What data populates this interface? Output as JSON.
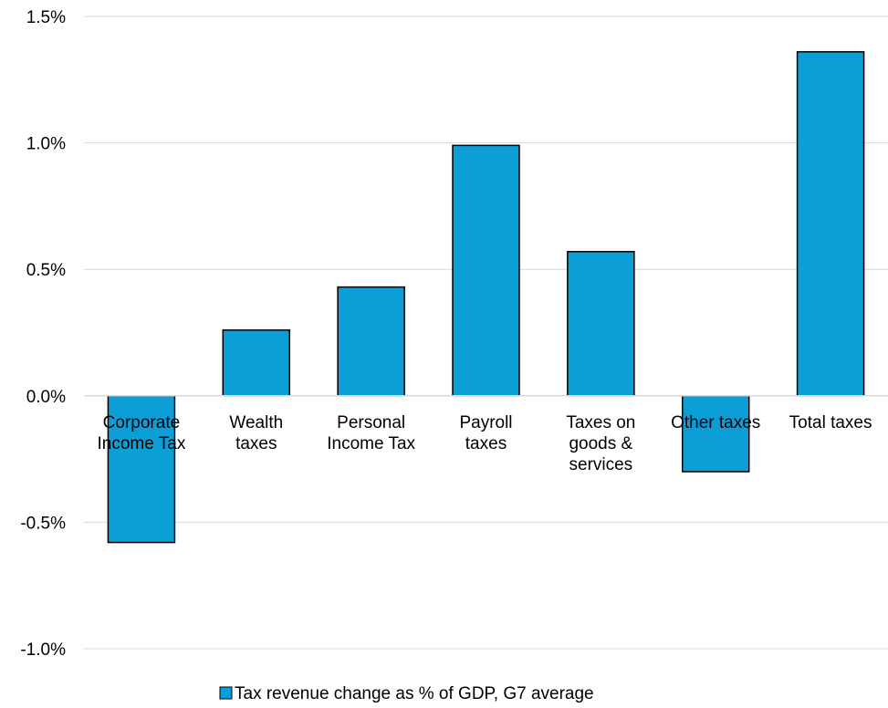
{
  "chart_data": {
    "type": "bar",
    "title": "",
    "xlabel": "",
    "ylabel": "",
    "categories": [
      [
        "Corporate",
        "Income Tax"
      ],
      [
        "Wealth",
        "taxes"
      ],
      [
        "Personal",
        "Income Tax"
      ],
      [
        "Payroll",
        "taxes"
      ],
      [
        "Taxes on",
        "goods &",
        "services"
      ],
      [
        "Other taxes"
      ],
      [
        "Total taxes"
      ]
    ],
    "series": [
      {
        "name": "Tax revenue change as % of GDP, G7 average",
        "values": [
          -0.0058,
          0.0026,
          0.0043,
          0.0099,
          0.0057,
          -0.003,
          0.0136
        ],
        "color": "#0c9ed6"
      }
    ],
    "ylim": [
      -0.01,
      0.015
    ],
    "yticks": [
      -0.01,
      -0.005,
      0.0,
      0.005,
      0.01,
      0.015
    ],
    "ytick_labels": [
      "-1.0%",
      "-0.5%",
      "0.0%",
      "0.5%",
      "1.0%",
      "1.5%"
    ],
    "grid": true,
    "legend_position": "bottom",
    "colors": {
      "bar": "#0c9ed6",
      "grid": "#d9d9d9",
      "bar_edge": "#000000"
    }
  }
}
